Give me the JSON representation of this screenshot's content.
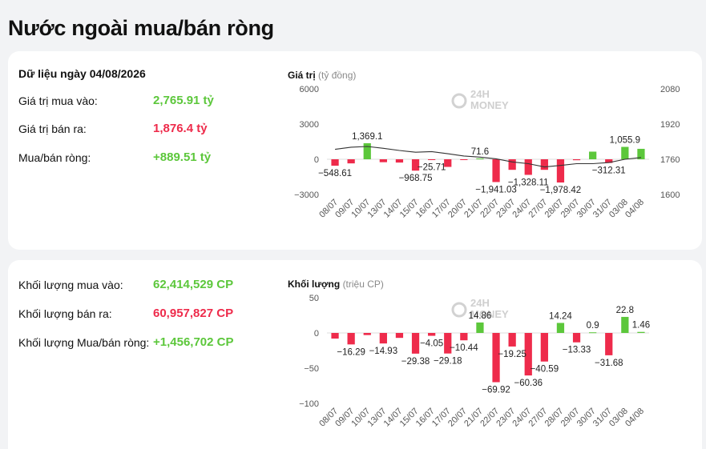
{
  "page_title": "Nước ngoài mua/bán ròng",
  "summary": {
    "date_label": "Dữ liệu ngày 04/08/2026",
    "rows": [
      {
        "label": "Giá trị mua vào:",
        "value": "2,765.91 tỷ",
        "color": "#5cc73b"
      },
      {
        "label": "Giá trị bán ra:",
        "value": "1,876.4 tỷ",
        "color": "#ee2b4b"
      },
      {
        "label": "Mua/bán ròng:",
        "value": "+889.51 tỷ",
        "color": "#5cc73b"
      }
    ]
  },
  "volume_summary": {
    "rows": [
      {
        "label": "Khối lượng mua vào:",
        "value": "62,414,529 CP",
        "color": "#5cc73b"
      },
      {
        "label": "Khối lượng bán ra:",
        "value": "60,957,827 CP",
        "color": "#ee2b4b"
      },
      {
        "label": "Khối lượng Mua/bán ròng:",
        "value": "+1,456,702 CP",
        "color": "#5cc73b"
      }
    ]
  },
  "watermark": {
    "line1": "24H",
    "line2": "MONEY"
  },
  "colors": {
    "positive": "#5cc73b",
    "negative": "#ee2b4b",
    "line": "#333333"
  },
  "chart_data": [
    {
      "type": "bar",
      "title": "Giá trị",
      "unit": "(tỷ đồng)",
      "categories": [
        "08/07",
        "09/07",
        "10/07",
        "13/07",
        "14/07",
        "15/07",
        "16/07",
        "17/07",
        "20/07",
        "21/07",
        "22/07",
        "23/07",
        "24/07",
        "27/07",
        "28/07",
        "29/07",
        "30/07",
        "31/07",
        "03/08",
        "04/08"
      ],
      "values": [
        -548.61,
        -350,
        1369.1,
        -250,
        -280,
        -968.75,
        -25.71,
        -650,
        -60,
        71.6,
        -1941.03,
        -900,
        -1328.11,
        -900,
        -1978.42,
        -80,
        650,
        -312.31,
        1055.9,
        889.51
      ],
      "data_labels": [
        {
          "index": 0,
          "text": "−548.61"
        },
        {
          "index": 2,
          "text": "1,369.1"
        },
        {
          "index": 5,
          "text": "−968.75"
        },
        {
          "index": 6,
          "text": "−25.71"
        },
        {
          "index": 9,
          "text": "71.6"
        },
        {
          "index": 10,
          "text": "−1,941.03"
        },
        {
          "index": 12,
          "text": "−1,328.11"
        },
        {
          "index": 14,
          "text": "−1,978.42"
        },
        {
          "index": 17,
          "text": "−312.31"
        },
        {
          "index": 18,
          "text": "1,055.9"
        }
      ],
      "ylim": [
        -3000,
        6000
      ],
      "yticks": [
        -3000,
        0,
        3000,
        6000
      ],
      "ytick_labels": [
        "−3000",
        "0",
        "3000",
        "6000"
      ],
      "secondary_axis": {
        "ylim": [
          1600,
          2080
        ],
        "yticks": [
          1600,
          1760,
          1920,
          2080
        ],
        "line_values": [
          1805,
          1815,
          1818,
          1810,
          1800,
          1792,
          1795,
          1785,
          1775,
          1770,
          1762,
          1748,
          1740,
          1725,
          1732,
          1740,
          1740,
          1745,
          1760,
          1768
        ]
      }
    },
    {
      "type": "bar",
      "title": "Khối lượng",
      "unit": "(triệu CP)",
      "categories": [
        "08/07",
        "09/07",
        "10/07",
        "13/07",
        "14/07",
        "15/07",
        "16/07",
        "17/07",
        "20/07",
        "21/07",
        "22/07",
        "23/07",
        "24/07",
        "27/07",
        "28/07",
        "29/07",
        "30/07",
        "31/07",
        "03/08",
        "04/08"
      ],
      "values": [
        -8,
        -16.29,
        -3,
        -14.93,
        -7,
        -29.38,
        -4.05,
        -29.18,
        -10.44,
        14.86,
        -69.92,
        -19.25,
        -60.36,
        -40.59,
        14.24,
        -13.33,
        0.9,
        -31.68,
        22.8,
        1.46
      ],
      "data_labels": [
        {
          "index": 1,
          "text": "−16.29"
        },
        {
          "index": 3,
          "text": "−14.93"
        },
        {
          "index": 5,
          "text": "−29.38"
        },
        {
          "index": 6,
          "text": "−4.05"
        },
        {
          "index": 7,
          "text": "−29.18"
        },
        {
          "index": 8,
          "text": "−10.44"
        },
        {
          "index": 9,
          "text": "14.86"
        },
        {
          "index": 10,
          "text": "−69.92"
        },
        {
          "index": 11,
          "text": "−19.25"
        },
        {
          "index": 12,
          "text": "−60.36"
        },
        {
          "index": 13,
          "text": "−40.59"
        },
        {
          "index": 14,
          "text": "14.24"
        },
        {
          "index": 15,
          "text": "−13.33"
        },
        {
          "index": 16,
          "text": "0.9"
        },
        {
          "index": 17,
          "text": "−31.68"
        },
        {
          "index": 18,
          "text": "22.8"
        },
        {
          "index": 19,
          "text": "1.46"
        }
      ],
      "ylim": [
        -100,
        50
      ],
      "yticks": [
        -100,
        -50,
        0,
        50
      ],
      "ytick_labels": [
        "−100",
        "−50",
        "0",
        "50"
      ]
    }
  ]
}
